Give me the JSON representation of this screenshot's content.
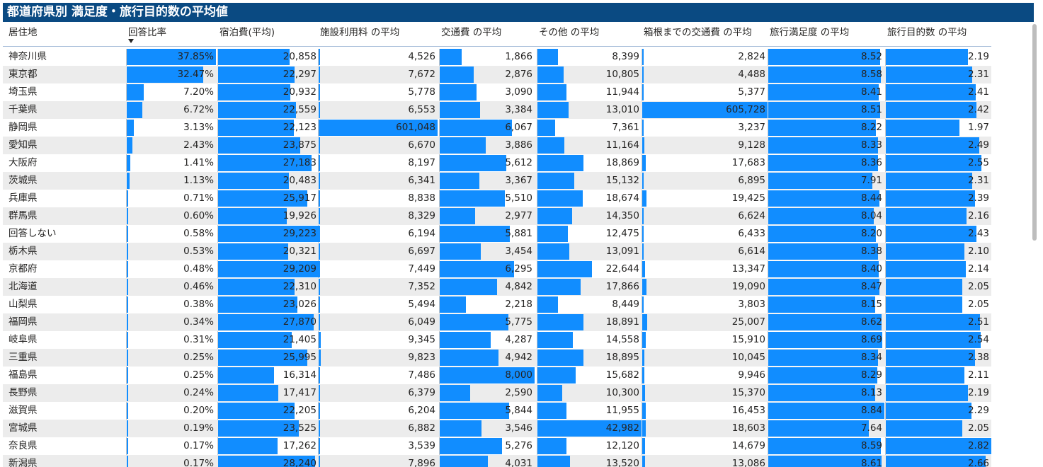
{
  "title": "都道府県別 満足度・旅行目的数の平均値",
  "accent_color": "#118dff",
  "header_color": "#0a4a82",
  "sort_icon": "sort-descending-icon",
  "columns": [
    {
      "key": "region",
      "label": "居住地",
      "max": null,
      "decimals": null,
      "suffix": ""
    },
    {
      "key": "ratio",
      "label": "回答比率",
      "max": 37.85,
      "decimals": 2,
      "suffix": "%"
    },
    {
      "key": "lodging",
      "label": "宿泊費(平均)",
      "max": 29223,
      "decimals": 0,
      "suffix": ""
    },
    {
      "key": "facility",
      "label": "施設利用料 の平均",
      "max": 601048,
      "decimals": 0,
      "suffix": ""
    },
    {
      "key": "transport",
      "label": "交通費 の平均",
      "max": 8000,
      "decimals": 0,
      "suffix": ""
    },
    {
      "key": "other",
      "label": "その他 の平均",
      "max": 42982,
      "decimals": 0,
      "suffix": ""
    },
    {
      "key": "hakone",
      "label": "箱根までの交通費 の平均",
      "max": 605728,
      "decimals": 0,
      "suffix": ""
    },
    {
      "key": "satisfaction",
      "label": "旅行満足度 の平均",
      "max": 8.84,
      "decimals": 2,
      "suffix": ""
    },
    {
      "key": "purposes",
      "label": "旅行目的数 の平均",
      "max": 2.82,
      "decimals": 2,
      "suffix": ""
    }
  ],
  "rows": [
    [
      "神奈川県",
      37.85,
      20858,
      4526,
      1866,
      8399,
      2824,
      8.52,
      2.19
    ],
    [
      "東京都",
      32.47,
      22297,
      7672,
      2876,
      10805,
      4488,
      8.58,
      2.31
    ],
    [
      "埼玉県",
      7.2,
      20932,
      5778,
      3090,
      11944,
      5377,
      8.41,
      2.41
    ],
    [
      "千葉県",
      6.72,
      22559,
      6553,
      3384,
      13010,
      605728,
      8.51,
      2.42
    ],
    [
      "静岡県",
      3.13,
      22123,
      601048,
      6067,
      7361,
      3237,
      8.22,
      1.97
    ],
    [
      "愛知県",
      2.43,
      23875,
      6670,
      3886,
      11164,
      9128,
      8.33,
      2.49
    ],
    [
      "大阪府",
      1.41,
      27183,
      8197,
      5612,
      18869,
      17683,
      8.36,
      2.55
    ],
    [
      "茨城県",
      1.13,
      20483,
      6341,
      3367,
      15132,
      6895,
      7.91,
      2.31
    ],
    [
      "兵庫県",
      0.71,
      25917,
      8838,
      5510,
      18674,
      19425,
      8.44,
      2.39
    ],
    [
      "群馬県",
      0.6,
      19926,
      8329,
      2977,
      14350,
      6624,
      8.04,
      2.16
    ],
    [
      "回答しない",
      0.58,
      29223,
      6194,
      5881,
      12475,
      6433,
      8.2,
      2.43
    ],
    [
      "栃木県",
      0.53,
      20321,
      6697,
      3454,
      13091,
      6614,
      8.38,
      2.1
    ],
    [
      "京都府",
      0.48,
      29209,
      7449,
      6295,
      22644,
      13347,
      8.4,
      2.14
    ],
    [
      "北海道",
      0.46,
      22310,
      7352,
      4842,
      17866,
      19090,
      8.47,
      2.05
    ],
    [
      "山梨県",
      0.38,
      23026,
      5494,
      2218,
      8449,
      3803,
      8.15,
      2.05
    ],
    [
      "福岡県",
      0.34,
      27870,
      6049,
      5775,
      18891,
      25007,
      8.62,
      2.51
    ],
    [
      "岐阜県",
      0.31,
      21405,
      9345,
      4287,
      14558,
      15910,
      8.69,
      2.54
    ],
    [
      "三重県",
      0.25,
      25995,
      9823,
      4942,
      18895,
      10045,
      8.34,
      2.38
    ],
    [
      "福島県",
      0.25,
      16314,
      7486,
      8000,
      15682,
      9946,
      8.29,
      2.11
    ],
    [
      "長野県",
      0.24,
      17417,
      6379,
      2590,
      10300,
      15370,
      8.13,
      2.19
    ],
    [
      "滋賀県",
      0.2,
      22205,
      6204,
      5844,
      11955,
      16453,
      8.84,
      2.29
    ],
    [
      "宮城県",
      0.19,
      23525,
      6882,
      3546,
      42982,
      18603,
      7.64,
      2.05
    ],
    [
      "奈良県",
      0.17,
      17262,
      3539,
      5276,
      12120,
      14679,
      8.59,
      2.82
    ],
    [
      "新潟県",
      0.17,
      28240,
      7896,
      4031,
      13520,
      13086,
      8.61,
      2.66
    ]
  ]
}
